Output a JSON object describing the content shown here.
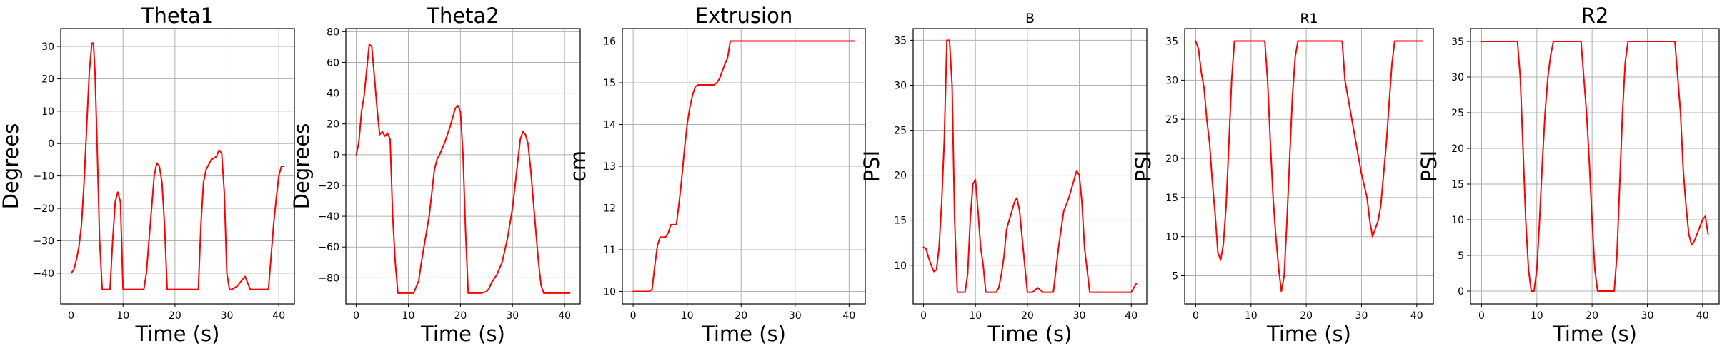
{
  "colors": {
    "line": "#ff0000",
    "grid": "#b0b0b0"
  },
  "chart_data": [
    {
      "type": "line",
      "title": "Theta1",
      "xlabel": "Time (s)",
      "ylabel": "Degrees",
      "xlim": [
        -2,
        43
      ],
      "ylim": [
        -49.5,
        35.5
      ],
      "xticks": [
        0,
        10,
        20,
        30,
        40
      ],
      "yticks": [
        -40,
        -30,
        -20,
        -10,
        0,
        10,
        20,
        30
      ],
      "grid": true,
      "series": [
        {
          "x": [
            0,
            0.5,
            1,
            1.5,
            2,
            2.5,
            3,
            3.5,
            4,
            4.3,
            4.6,
            5,
            5.5,
            6,
            6.5,
            7,
            7.5,
            8,
            8.5,
            9,
            9.5,
            10,
            10.5,
            11,
            11.5,
            12,
            13,
            14,
            14.5,
            15,
            15.5,
            16,
            16.5,
            17,
            17.5,
            18,
            18.5,
            19,
            19.5,
            20,
            21,
            22,
            23,
            24,
            24.5,
            25,
            25.5,
            26,
            27,
            28,
            28.5,
            29,
            29.5,
            30,
            30.5,
            31,
            32,
            33,
            33.5,
            34,
            34.5,
            35,
            36,
            37,
            38,
            38.5,
            39,
            39.5,
            40,
            40.5,
            41
          ],
          "y": [
            -40,
            -39,
            -36,
            -32,
            -25,
            -12,
            5,
            22,
            31,
            31,
            22,
            0,
            -30,
            -45,
            -45,
            -45,
            -45,
            -30,
            -18,
            -15,
            -18,
            -45,
            -45,
            -45,
            -45,
            -45,
            -45,
            -45,
            -40,
            -30,
            -20,
            -10,
            -6,
            -7,
            -12,
            -25,
            -45,
            -45,
            -45,
            -45,
            -45,
            -45,
            -45,
            -45,
            -45,
            -25,
            -12,
            -8,
            -5,
            -4,
            -2,
            -3,
            -15,
            -40,
            -45,
            -45,
            -44,
            -42,
            -41,
            -43,
            -45,
            -45,
            -45,
            -45,
            -45,
            -35,
            -25,
            -17,
            -10,
            -7,
            -7
          ]
        }
      ]
    },
    {
      "type": "line",
      "title": "Theta2",
      "xlabel": "Time (s)",
      "ylabel": "Degrees",
      "xlim": [
        -2,
        43
      ],
      "ylim": [
        -97,
        82
      ],
      "xticks": [
        0,
        10,
        20,
        30,
        40
      ],
      "yticks": [
        -80,
        -60,
        -40,
        -20,
        0,
        20,
        40,
        60,
        80
      ],
      "grid": true,
      "series": [
        {
          "x": [
            0,
            0.5,
            1,
            1.5,
            2,
            2.5,
            3,
            3.5,
            4,
            4.5,
            5,
            5.5,
            6,
            6.5,
            7,
            7.5,
            8,
            8.5,
            9,
            9.5,
            10,
            11,
            12,
            12.5,
            13,
            13.5,
            14,
            14.5,
            15,
            15.5,
            16,
            17,
            18,
            19,
            19.5,
            20,
            20.5,
            21,
            21.5,
            22,
            23,
            24,
            25,
            25.5,
            26,
            27,
            28,
            29,
            30,
            30.5,
            31,
            31.5,
            32,
            32.5,
            33,
            33.5,
            34,
            34.5,
            35,
            35.5,
            36,
            37,
            38,
            39,
            40,
            41
          ],
          "y": [
            0,
            8,
            28,
            38,
            55,
            72,
            70,
            50,
            30,
            13,
            15,
            12,
            14,
            10,
            -40,
            -70,
            -90,
            -90,
            -90,
            -90,
            -90,
            -90,
            -82,
            -70,
            -60,
            -50,
            -40,
            -25,
            -10,
            -3,
            0,
            8,
            18,
            30,
            32,
            28,
            0,
            -50,
            -90,
            -90,
            -90,
            -90,
            -89,
            -87,
            -83,
            -78,
            -70,
            -55,
            -35,
            -20,
            -5,
            10,
            15,
            13,
            7,
            -10,
            -30,
            -50,
            -70,
            -85,
            -90,
            -90,
            -90,
            -90,
            -90,
            -90
          ]
        }
      ]
    },
    {
      "type": "line",
      "title": "Extrusion",
      "xlabel": "Time (s)",
      "ylabel": "cm",
      "xlim": [
        -2,
        43
      ],
      "ylim": [
        9.7,
        16.3
      ],
      "xticks": [
        0,
        10,
        20,
        30,
        40
      ],
      "yticks": [
        10,
        11,
        12,
        13,
        14,
        15,
        16
      ],
      "grid": true,
      "series": [
        {
          "x": [
            0,
            3,
            3.5,
            4,
            4.5,
            5,
            6,
            6.5,
            7,
            7.5,
            8,
            8.5,
            9,
            9.5,
            10,
            10.5,
            11,
            11.5,
            12,
            13,
            14,
            15,
            15.5,
            16,
            17,
            17.5,
            18,
            19,
            20,
            25,
            30,
            35,
            40,
            41
          ],
          "y": [
            10,
            10,
            10.05,
            10.6,
            11.1,
            11.3,
            11.3,
            11.4,
            11.6,
            11.6,
            11.6,
            12.1,
            12.7,
            13.4,
            14,
            14.4,
            14.7,
            14.9,
            14.95,
            14.95,
            14.95,
            14.95,
            15,
            15.1,
            15.45,
            15.6,
            16,
            16,
            16,
            16,
            16,
            16,
            16,
            16
          ]
        }
      ]
    },
    {
      "type": "line",
      "title": "B",
      "xlabel": "Time (s)",
      "ylabel": "PSI",
      "xlim": [
        -2,
        43
      ],
      "ylim": [
        5.7,
        36.3
      ],
      "xticks": [
        0,
        10,
        20,
        30,
        40
      ],
      "yticks": [
        10,
        15,
        20,
        25,
        30,
        35
      ],
      "grid": true,
      "series": [
        {
          "x": [
            0,
            0.5,
            1,
            1.5,
            2,
            2.5,
            3,
            3.5,
            4,
            4.5,
            5,
            5.5,
            6,
            6.5,
            7,
            7.5,
            8,
            8.5,
            9,
            9.5,
            10,
            10.5,
            11,
            11.5,
            12,
            13,
            14,
            14.5,
            15,
            15.5,
            16,
            16.5,
            17,
            17.5,
            18,
            18.5,
            19,
            19.5,
            20,
            21,
            22,
            23,
            24,
            25,
            26,
            27,
            28,
            28.5,
            29,
            29.5,
            30,
            30.5,
            31,
            32,
            33,
            34,
            35,
            36,
            37,
            38,
            39,
            40,
            41
          ],
          "y": [
            12,
            11.8,
            10.8,
            10,
            9.3,
            9.5,
            12,
            17,
            24,
            35,
            35,
            30,
            15,
            7,
            7,
            7,
            7,
            9,
            15,
            19,
            19.5,
            16,
            12,
            10,
            7,
            7,
            7,
            7.5,
            9,
            11,
            14,
            15,
            16,
            17,
            17.5,
            16,
            13,
            10,
            7,
            7,
            7.5,
            7,
            7,
            7,
            12,
            16,
            17.5,
            18.5,
            19.5,
            20.5,
            20,
            17,
            12,
            7,
            7,
            7,
            7,
            7,
            7,
            7,
            7,
            7,
            8
          ]
        }
      ]
    },
    {
      "type": "line",
      "title": "R1",
      "xlabel": "Time (s)",
      "ylabel": "PSI",
      "xlim": [
        -2,
        43
      ],
      "ylim": [
        1.4,
        36.6
      ],
      "xticks": [
        0,
        10,
        20,
        30,
        40
      ],
      "yticks": [
        5,
        10,
        15,
        20,
        25,
        30,
        35
      ],
      "grid": true,
      "series": [
        {
          "x": [
            0,
            0.5,
            1,
            1.5,
            2,
            2.5,
            3,
            3.5,
            4,
            4.5,
            5,
            5.5,
            6,
            6.5,
            7,
            7.5,
            8,
            9,
            10,
            11,
            12,
            12.5,
            13,
            13.5,
            14,
            14.5,
            15,
            15.5,
            16,
            16.5,
            17,
            17.5,
            18,
            18.5,
            19,
            20,
            22,
            24,
            26,
            26.5,
            27,
            28,
            29,
            30,
            31,
            31.5,
            32,
            32.5,
            33,
            33.5,
            34,
            34.5,
            35,
            35.5,
            36,
            37,
            38,
            39,
            40,
            41
          ],
          "y": [
            35,
            34,
            31,
            29,
            25,
            22,
            17,
            13,
            8,
            7,
            9,
            14,
            22,
            30,
            35,
            35,
            35,
            35,
            35,
            35,
            35,
            35,
            30,
            22,
            15,
            10,
            6,
            3,
            5,
            12,
            20,
            28,
            33,
            35,
            35,
            35,
            35,
            35,
            35,
            35,
            30,
            26,
            22,
            18,
            15,
            12,
            10,
            11,
            12,
            14,
            18,
            22,
            27,
            32,
            35,
            35,
            35,
            35,
            35,
            35
          ]
        }
      ]
    },
    {
      "type": "line",
      "title": "R2",
      "xlabel": "Time (s)",
      "ylabel": "PSI",
      "xlim": [
        -2,
        43
      ],
      "ylim": [
        -1.8,
        36.8
      ],
      "xticks": [
        0,
        10,
        20,
        30,
        40
      ],
      "yticks": [
        0,
        5,
        10,
        15,
        20,
        25,
        30,
        35
      ],
      "grid": true,
      "series": [
        {
          "x": [
            0,
            2,
            4,
            5,
            6,
            6.5,
            7,
            7.5,
            8,
            8.5,
            9,
            9.5,
            10,
            10.5,
            11,
            11.5,
            12,
            12.5,
            13,
            14,
            15,
            16,
            17,
            18,
            18.5,
            19,
            19.5,
            20,
            20.5,
            21,
            21.5,
            22,
            23,
            24,
            24.5,
            25,
            25.5,
            26,
            26.5,
            27,
            28,
            30,
            32,
            34,
            35,
            35.5,
            36,
            36.5,
            37,
            37.5,
            38,
            38.5,
            39,
            39.5,
            40,
            40.5,
            41
          ],
          "y": [
            35,
            35,
            35,
            35,
            35,
            35,
            30,
            20,
            10,
            3,
            0,
            0,
            3,
            10,
            18,
            25,
            30,
            33,
            35,
            35,
            35,
            35,
            35,
            35,
            30,
            25,
            18,
            10,
            3,
            0,
            0,
            0,
            0,
            0,
            5,
            15,
            25,
            32,
            35,
            35,
            35,
            35,
            35,
            35,
            35,
            30,
            25,
            17,
            12,
            8,
            6.5,
            7,
            8,
            9,
            10,
            10.5,
            8
          ]
        }
      ]
    }
  ]
}
